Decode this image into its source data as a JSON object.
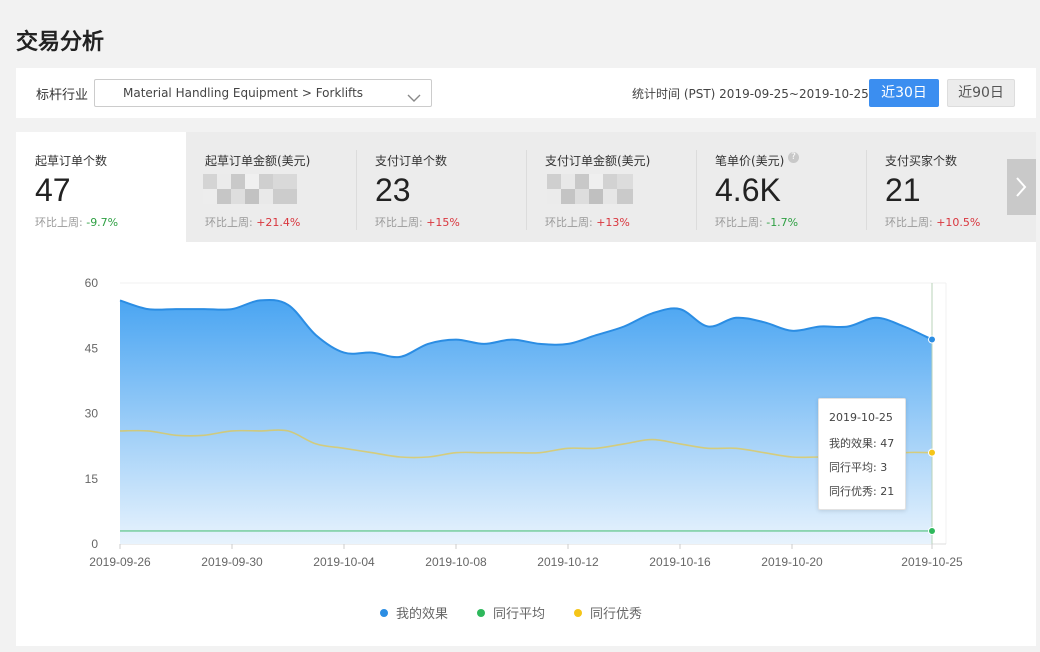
{
  "page": {
    "title": "交易分析"
  },
  "filter": {
    "industry_label": "标杆行业",
    "industry_value": "Material Handling Equipment > Forklifts",
    "stat_time": "统计时间 (PST) 2019-09-25~2019-10-25",
    "range_buttons": [
      "近30日",
      "近90日"
    ],
    "active_range": "近30日"
  },
  "kpis": [
    {
      "label": "起草订单个数",
      "value": "47",
      "change_label": "环比上周:",
      "change": "-9.7%",
      "direction": "down",
      "active": true
    },
    {
      "label": "起草订单金额(美元)",
      "value": "",
      "blurred": true,
      "change_label": "环比上周:",
      "change": "+21.4%",
      "direction": "up"
    },
    {
      "label": "支付订单个数",
      "value": "23",
      "change_label": "环比上周:",
      "change": "+15%",
      "direction": "up"
    },
    {
      "label": "支付订单金额(美元)",
      "value": "",
      "blurred": true,
      "change_label": "环比上周:",
      "change": "+13%",
      "direction": "up"
    },
    {
      "label": "笔单价(美元)",
      "value": "4.6K",
      "change_label": "环比上周:",
      "change": "-1.7%",
      "direction": "down",
      "help_icon": "question-circle-icon"
    },
    {
      "label": "支付买家个数",
      "value": "21",
      "change_label": "环比上周:",
      "change": "+10.5%",
      "direction": "up"
    }
  ],
  "chart_data": {
    "type": "area",
    "title": "",
    "xlabel": "",
    "ylabel": "",
    "x": [
      "2019-09-26",
      "2019-09-27",
      "2019-09-28",
      "2019-09-29",
      "2019-09-30",
      "2019-10-01",
      "2019-10-02",
      "2019-10-03",
      "2019-10-04",
      "2019-10-05",
      "2019-10-06",
      "2019-10-07",
      "2019-10-08",
      "2019-10-09",
      "2019-10-10",
      "2019-10-11",
      "2019-10-12",
      "2019-10-13",
      "2019-10-14",
      "2019-10-15",
      "2019-10-16",
      "2019-10-17",
      "2019-10-18",
      "2019-10-19",
      "2019-10-20",
      "2019-10-21",
      "2019-10-22",
      "2019-10-23",
      "2019-10-24",
      "2019-10-25"
    ],
    "x_ticks": [
      "2019-09-26",
      "2019-09-30",
      "2019-10-04",
      "2019-10-08",
      "2019-10-12",
      "2019-10-16",
      "2019-10-20",
      "2019-10-25"
    ],
    "ylim": [
      0,
      60
    ],
    "y_ticks": [
      0,
      15,
      30,
      45,
      60
    ],
    "grid": false,
    "legend_position": "bottom",
    "series": [
      {
        "name": "我的效果",
        "color": "#2b8de3",
        "fill": true,
        "values": [
          56,
          54,
          54,
          54,
          54,
          56,
          55,
          48,
          44,
          44,
          43,
          46,
          47,
          46,
          47,
          46,
          46,
          48,
          50,
          53,
          54,
          50,
          52,
          51,
          49,
          50,
          50,
          52,
          50,
          47
        ]
      },
      {
        "name": "同行平均",
        "color": "#2eb85c",
        "fill": false,
        "values": [
          3,
          3,
          3,
          3,
          3,
          3,
          3,
          3,
          3,
          3,
          3,
          3,
          3,
          3,
          3,
          3,
          3,
          3,
          3,
          3,
          3,
          3,
          3,
          3,
          3,
          3,
          3,
          3,
          3,
          3
        ]
      },
      {
        "name": "同行优秀",
        "color": "#f5c518",
        "fill": false,
        "values": [
          26,
          26,
          25,
          25,
          26,
          26,
          26,
          23,
          22,
          21,
          20,
          20,
          21,
          21,
          21,
          21,
          22,
          22,
          23,
          24,
          23,
          22,
          22,
          21,
          20,
          20,
          20,
          20,
          21,
          21
        ]
      }
    ],
    "tooltip": {
      "date": "2019-10-25",
      "lines": [
        "我的效果: 47",
        "同行平均: 3",
        "同行优秀: 21"
      ]
    }
  }
}
